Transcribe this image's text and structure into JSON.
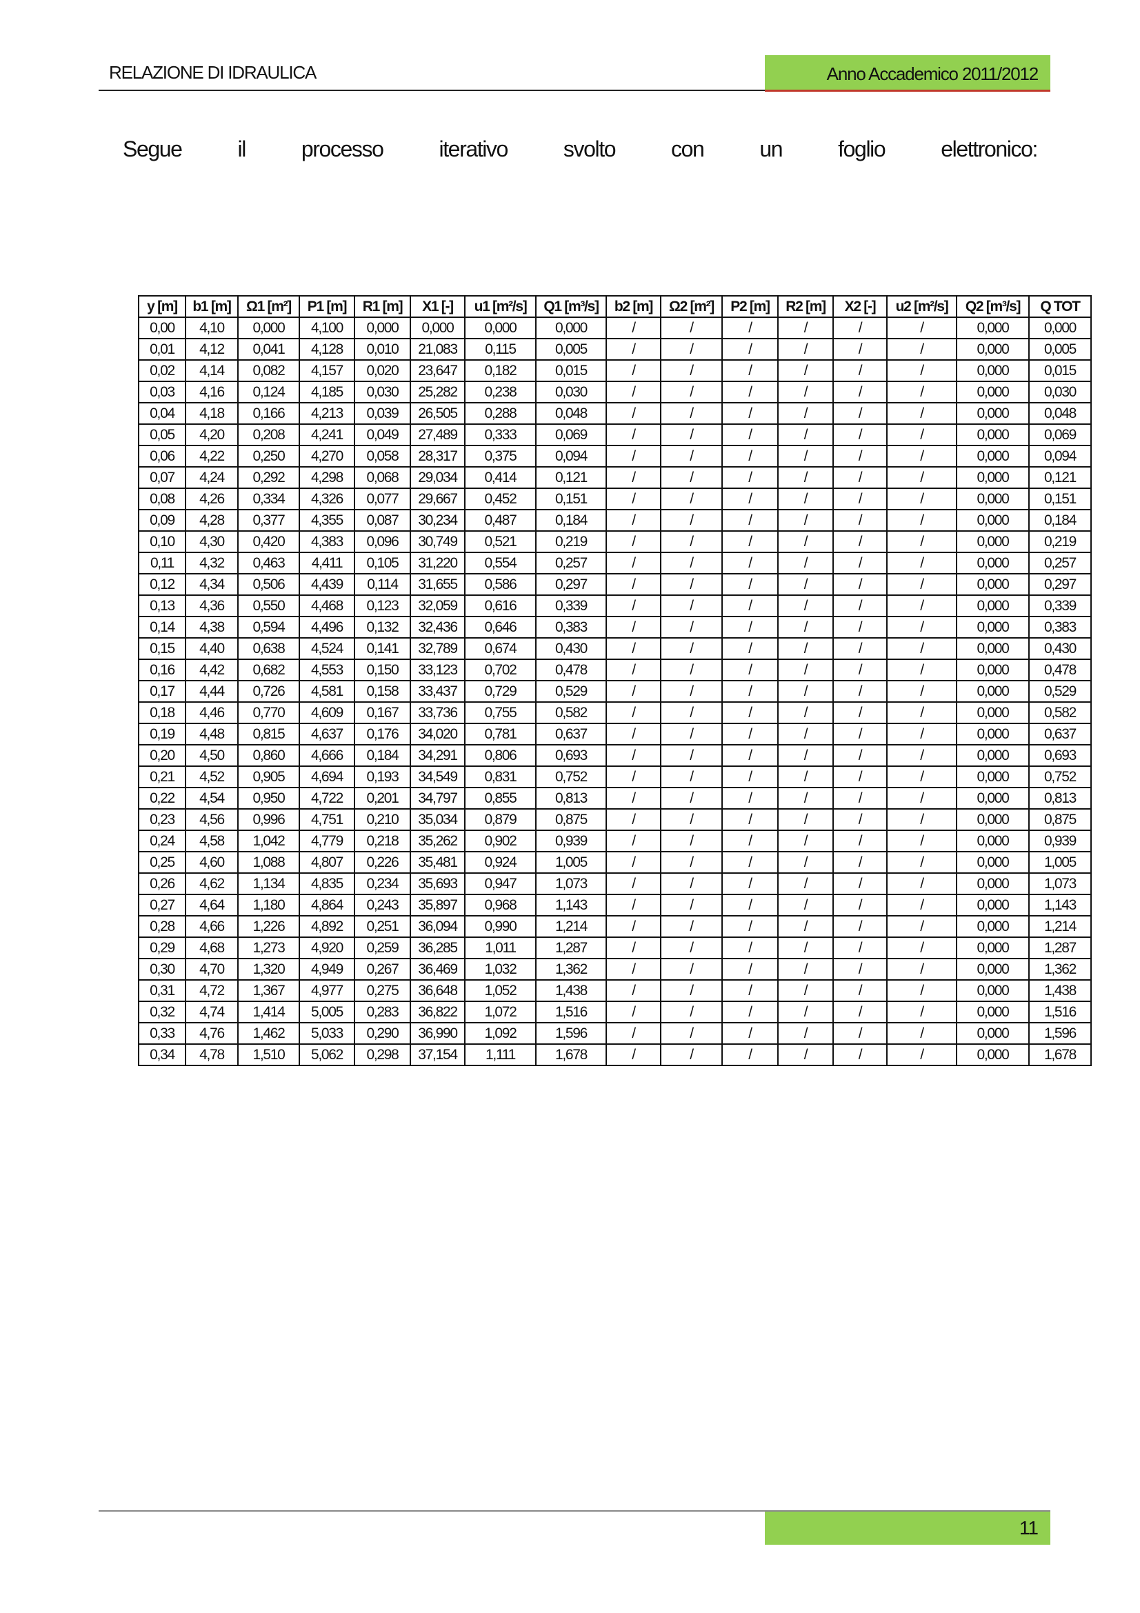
{
  "header": {
    "title": "RELAZIONE DI IDRAULICA",
    "academic_year": "Anno Accademico 2011/2012",
    "accent_color": "#92d050"
  },
  "intro_words": [
    "Segue",
    "il",
    "processo",
    "iterativo",
    "svolto",
    "con",
    "un",
    "foglio",
    "elettronico:"
  ],
  "table": {
    "columns": [
      "y [m]",
      "b1 [m]",
      "Ω1 [m²]",
      "P1 [m]",
      "R1 [m]",
      "X1 [-]",
      "u1 [m²/s]",
      "Q1 [m³/s]",
      "b2 [m]",
      "Ω2 [m²]",
      "P2 [m]",
      "R2 [m]",
      "X2 [-]",
      "u2 [m²/s]",
      "Q2 [m³/s]",
      "Q TOT"
    ],
    "rows": [
      [
        "0,00",
        "4,10",
        "0,000",
        "4,100",
        "0,000",
        "0,000",
        "0,000",
        "0,000",
        "/",
        "/",
        "/",
        "/",
        "/",
        "/",
        "0,000",
        "0,000"
      ],
      [
        "0,01",
        "4,12",
        "0,041",
        "4,128",
        "0,010",
        "21,083",
        "0,115",
        "0,005",
        "/",
        "/",
        "/",
        "/",
        "/",
        "/",
        "0,000",
        "0,005"
      ],
      [
        "0,02",
        "4,14",
        "0,082",
        "4,157",
        "0,020",
        "23,647",
        "0,182",
        "0,015",
        "/",
        "/",
        "/",
        "/",
        "/",
        "/",
        "0,000",
        "0,015"
      ],
      [
        "0,03",
        "4,16",
        "0,124",
        "4,185",
        "0,030",
        "25,282",
        "0,238",
        "0,030",
        "/",
        "/",
        "/",
        "/",
        "/",
        "/",
        "0,000",
        "0,030"
      ],
      [
        "0,04",
        "4,18",
        "0,166",
        "4,213",
        "0,039",
        "26,505",
        "0,288",
        "0,048",
        "/",
        "/",
        "/",
        "/",
        "/",
        "/",
        "0,000",
        "0,048"
      ],
      [
        "0,05",
        "4,20",
        "0,208",
        "4,241",
        "0,049",
        "27,489",
        "0,333",
        "0,069",
        "/",
        "/",
        "/",
        "/",
        "/",
        "/",
        "0,000",
        "0,069"
      ],
      [
        "0,06",
        "4,22",
        "0,250",
        "4,270",
        "0,058",
        "28,317",
        "0,375",
        "0,094",
        "/",
        "/",
        "/",
        "/",
        "/",
        "/",
        "0,000",
        "0,094"
      ],
      [
        "0,07",
        "4,24",
        "0,292",
        "4,298",
        "0,068",
        "29,034",
        "0,414",
        "0,121",
        "/",
        "/",
        "/",
        "/",
        "/",
        "/",
        "0,000",
        "0,121"
      ],
      [
        "0,08",
        "4,26",
        "0,334",
        "4,326",
        "0,077",
        "29,667",
        "0,452",
        "0,151",
        "/",
        "/",
        "/",
        "/",
        "/",
        "/",
        "0,000",
        "0,151"
      ],
      [
        "0,09",
        "4,28",
        "0,377",
        "4,355",
        "0,087",
        "30,234",
        "0,487",
        "0,184",
        "/",
        "/",
        "/",
        "/",
        "/",
        "/",
        "0,000",
        "0,184"
      ],
      [
        "0,10",
        "4,30",
        "0,420",
        "4,383",
        "0,096",
        "30,749",
        "0,521",
        "0,219",
        "/",
        "/",
        "/",
        "/",
        "/",
        "/",
        "0,000",
        "0,219"
      ],
      [
        "0,11",
        "4,32",
        "0,463",
        "4,411",
        "0,105",
        "31,220",
        "0,554",
        "0,257",
        "/",
        "/",
        "/",
        "/",
        "/",
        "/",
        "0,000",
        "0,257"
      ],
      [
        "0,12",
        "4,34",
        "0,506",
        "4,439",
        "0,114",
        "31,655",
        "0,586",
        "0,297",
        "/",
        "/",
        "/",
        "/",
        "/",
        "/",
        "0,000",
        "0,297"
      ],
      [
        "0,13",
        "4,36",
        "0,550",
        "4,468",
        "0,123",
        "32,059",
        "0,616",
        "0,339",
        "/",
        "/",
        "/",
        "/",
        "/",
        "/",
        "0,000",
        "0,339"
      ],
      [
        "0,14",
        "4,38",
        "0,594",
        "4,496",
        "0,132",
        "32,436",
        "0,646",
        "0,383",
        "/",
        "/",
        "/",
        "/",
        "/",
        "/",
        "0,000",
        "0,383"
      ],
      [
        "0,15",
        "4,40",
        "0,638",
        "4,524",
        "0,141",
        "32,789",
        "0,674",
        "0,430",
        "/",
        "/",
        "/",
        "/",
        "/",
        "/",
        "0,000",
        "0,430"
      ],
      [
        "0,16",
        "4,42",
        "0,682",
        "4,553",
        "0,150",
        "33,123",
        "0,702",
        "0,478",
        "/",
        "/",
        "/",
        "/",
        "/",
        "/",
        "0,000",
        "0,478"
      ],
      [
        "0,17",
        "4,44",
        "0,726",
        "4,581",
        "0,158",
        "33,437",
        "0,729",
        "0,529",
        "/",
        "/",
        "/",
        "/",
        "/",
        "/",
        "0,000",
        "0,529"
      ],
      [
        "0,18",
        "4,46",
        "0,770",
        "4,609",
        "0,167",
        "33,736",
        "0,755",
        "0,582",
        "/",
        "/",
        "/",
        "/",
        "/",
        "/",
        "0,000",
        "0,582"
      ],
      [
        "0,19",
        "4,48",
        "0,815",
        "4,637",
        "0,176",
        "34,020",
        "0,781",
        "0,637",
        "/",
        "/",
        "/",
        "/",
        "/",
        "/",
        "0,000",
        "0,637"
      ],
      [
        "0,20",
        "4,50",
        "0,860",
        "4,666",
        "0,184",
        "34,291",
        "0,806",
        "0,693",
        "/",
        "/",
        "/",
        "/",
        "/",
        "/",
        "0,000",
        "0,693"
      ],
      [
        "0,21",
        "4,52",
        "0,905",
        "4,694",
        "0,193",
        "34,549",
        "0,831",
        "0,752",
        "/",
        "/",
        "/",
        "/",
        "/",
        "/",
        "0,000",
        "0,752"
      ],
      [
        "0,22",
        "4,54",
        "0,950",
        "4,722",
        "0,201",
        "34,797",
        "0,855",
        "0,813",
        "/",
        "/",
        "/",
        "/",
        "/",
        "/",
        "0,000",
        "0,813"
      ],
      [
        "0,23",
        "4,56",
        "0,996",
        "4,751",
        "0,210",
        "35,034",
        "0,879",
        "0,875",
        "/",
        "/",
        "/",
        "/",
        "/",
        "/",
        "0,000",
        "0,875"
      ],
      [
        "0,24",
        "4,58",
        "1,042",
        "4,779",
        "0,218",
        "35,262",
        "0,902",
        "0,939",
        "/",
        "/",
        "/",
        "/",
        "/",
        "/",
        "0,000",
        "0,939"
      ],
      [
        "0,25",
        "4,60",
        "1,088",
        "4,807",
        "0,226",
        "35,481",
        "0,924",
        "1,005",
        "/",
        "/",
        "/",
        "/",
        "/",
        "/",
        "0,000",
        "1,005"
      ],
      [
        "0,26",
        "4,62",
        "1,134",
        "4,835",
        "0,234",
        "35,693",
        "0,947",
        "1,073",
        "/",
        "/",
        "/",
        "/",
        "/",
        "/",
        "0,000",
        "1,073"
      ],
      [
        "0,27",
        "4,64",
        "1,180",
        "4,864",
        "0,243",
        "35,897",
        "0,968",
        "1,143",
        "/",
        "/",
        "/",
        "/",
        "/",
        "/",
        "0,000",
        "1,143"
      ],
      [
        "0,28",
        "4,66",
        "1,226",
        "4,892",
        "0,251",
        "36,094",
        "0,990",
        "1,214",
        "/",
        "/",
        "/",
        "/",
        "/",
        "/",
        "0,000",
        "1,214"
      ],
      [
        "0,29",
        "4,68",
        "1,273",
        "4,920",
        "0,259",
        "36,285",
        "1,011",
        "1,287",
        "/",
        "/",
        "/",
        "/",
        "/",
        "/",
        "0,000",
        "1,287"
      ],
      [
        "0,30",
        "4,70",
        "1,320",
        "4,949",
        "0,267",
        "36,469",
        "1,032",
        "1,362",
        "/",
        "/",
        "/",
        "/",
        "/",
        "/",
        "0,000",
        "1,362"
      ],
      [
        "0,31",
        "4,72",
        "1,367",
        "4,977",
        "0,275",
        "36,648",
        "1,052",
        "1,438",
        "/",
        "/",
        "/",
        "/",
        "/",
        "/",
        "0,000",
        "1,438"
      ],
      [
        "0,32",
        "4,74",
        "1,414",
        "5,005",
        "0,283",
        "36,822",
        "1,072",
        "1,516",
        "/",
        "/",
        "/",
        "/",
        "/",
        "/",
        "0,000",
        "1,516"
      ],
      [
        "0,33",
        "4,76",
        "1,462",
        "5,033",
        "0,290",
        "36,990",
        "1,092",
        "1,596",
        "/",
        "/",
        "/",
        "/",
        "/",
        "/",
        "0,000",
        "1,596"
      ],
      [
        "0,34",
        "4,78",
        "1,510",
        "5,062",
        "0,298",
        "37,154",
        "1,111",
        "1,678",
        "/",
        "/",
        "/",
        "/",
        "/",
        "/",
        "0,000",
        "1,678"
      ]
    ]
  },
  "footer": {
    "page_number": "11"
  }
}
